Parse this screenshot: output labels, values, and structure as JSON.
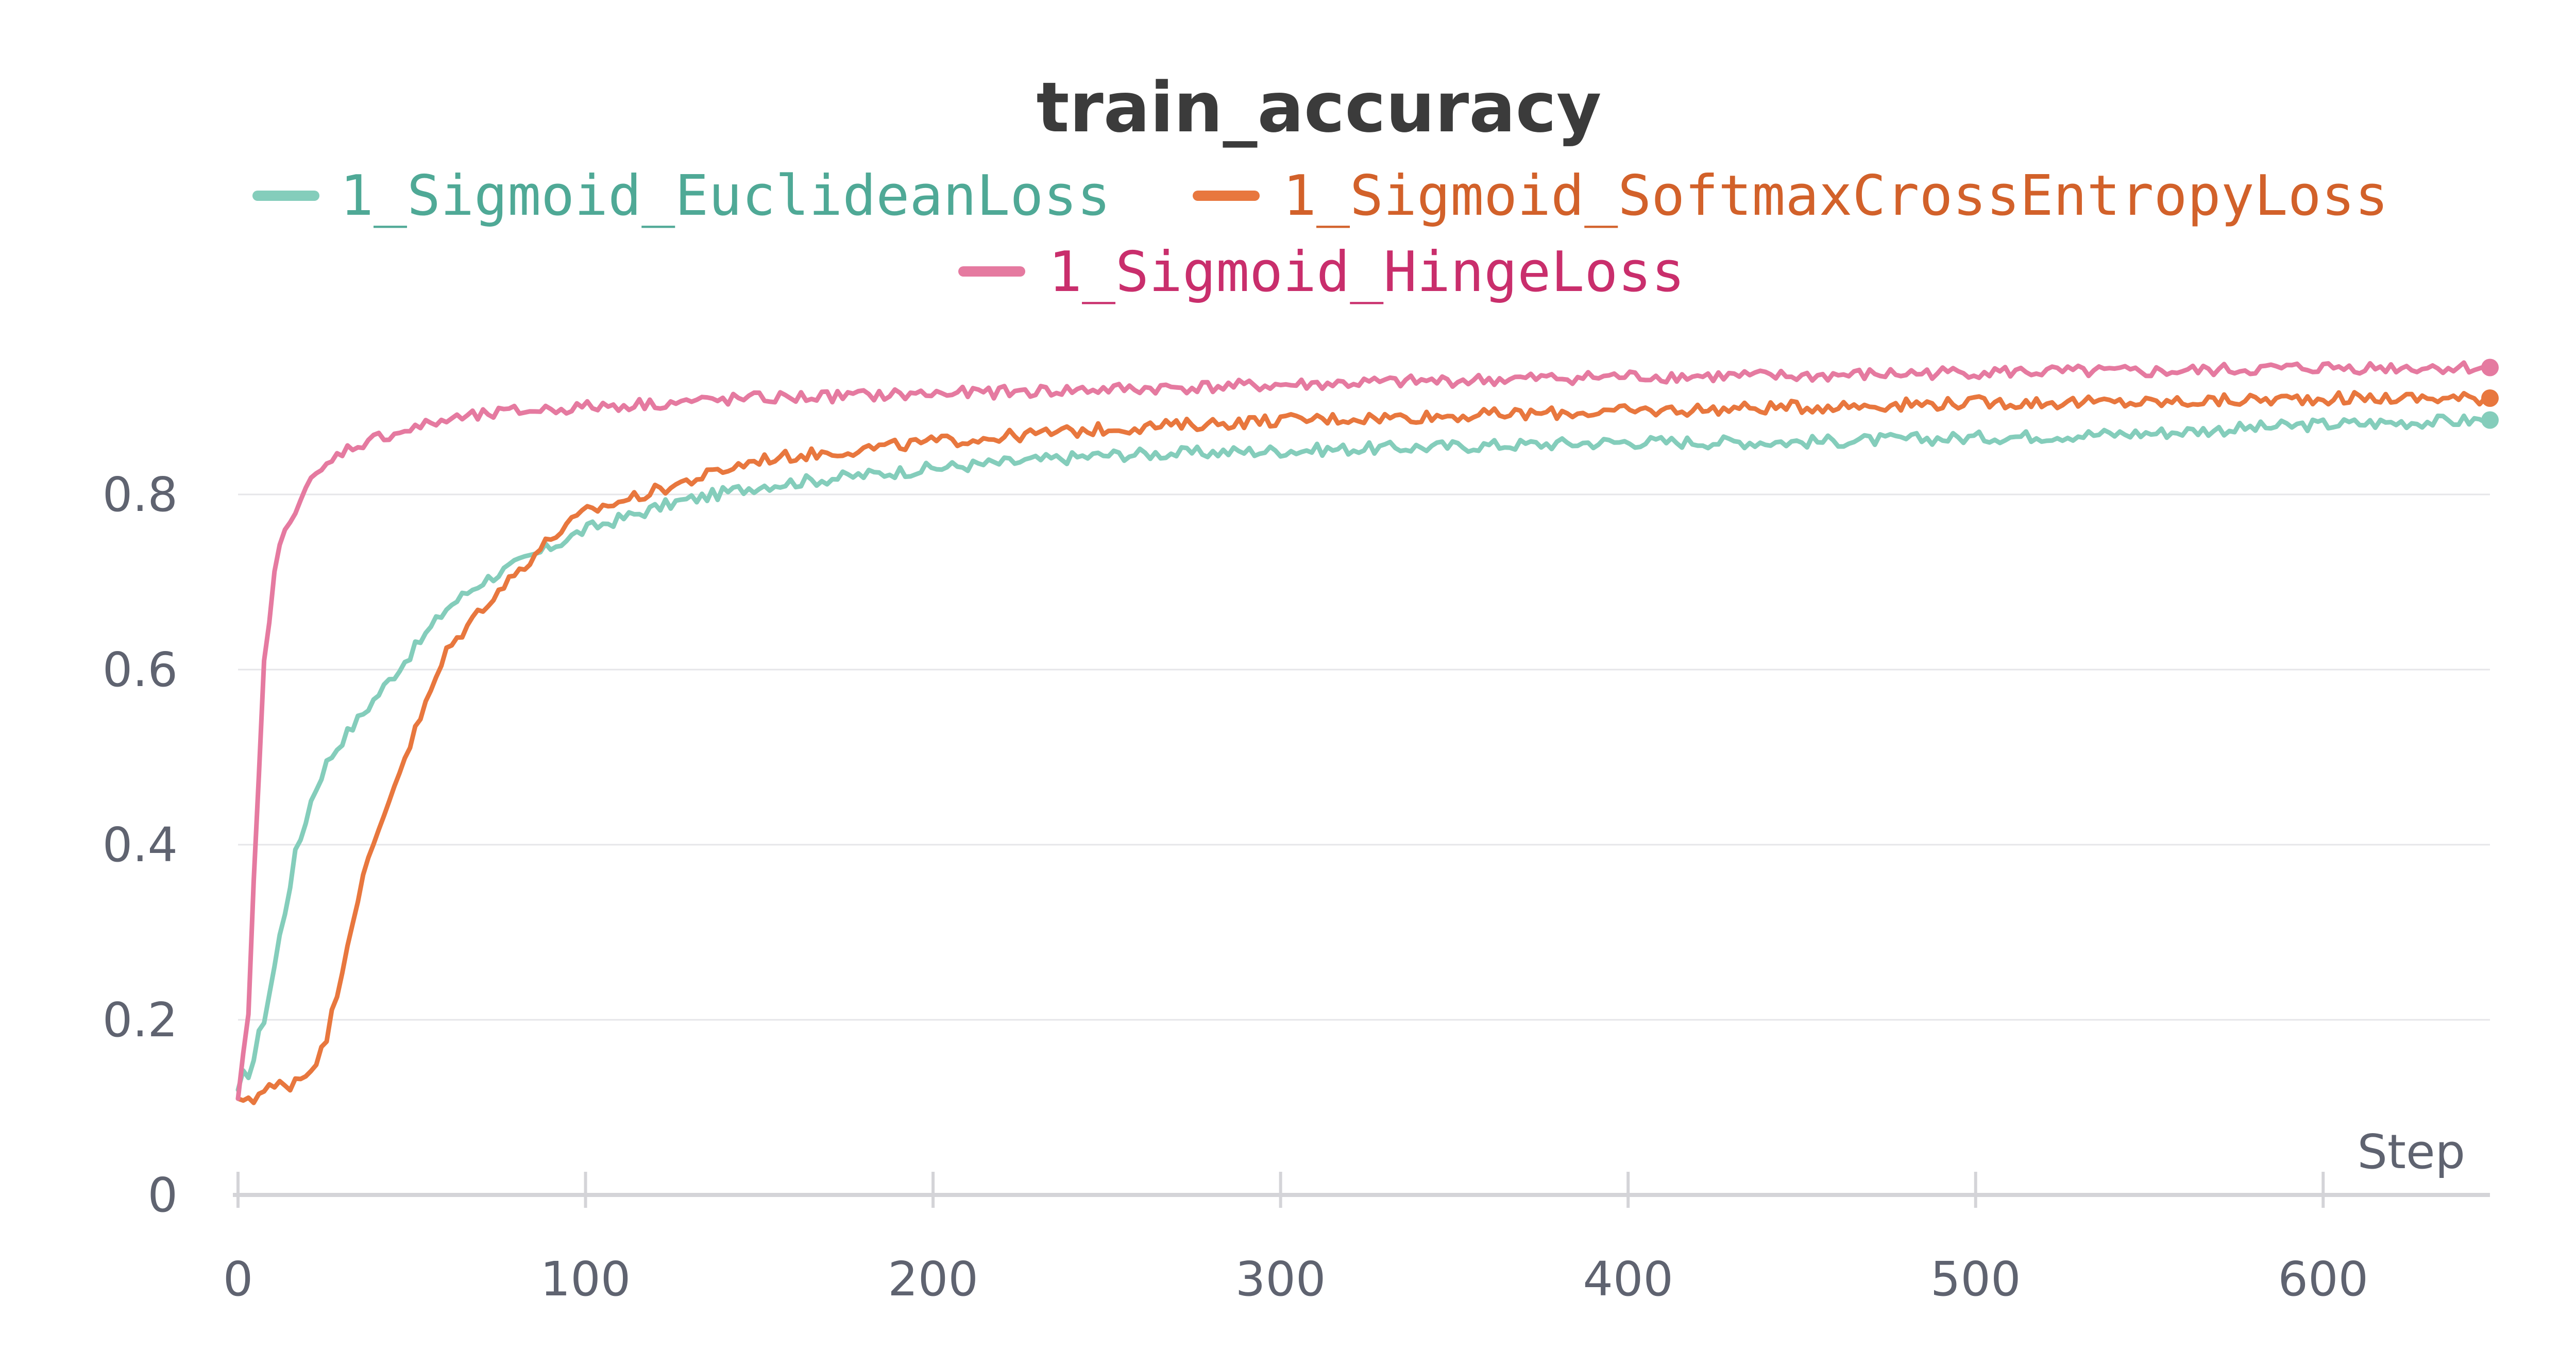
{
  "chart_data": {
    "type": "line",
    "title": "train_accuracy",
    "xlabel": "Step",
    "ylabel": "",
    "xlim": [
      0,
      648
    ],
    "ylim": [
      0,
      1.0
    ],
    "x_ticks": [
      0,
      100,
      200,
      300,
      400,
      500,
      600
    ],
    "y_ticks": [
      0,
      0.2,
      0.4,
      0.6,
      0.8
    ],
    "y_tick_labels": [
      "0",
      "0.2",
      "0.4",
      "0.6",
      "0.8"
    ],
    "grid": true,
    "legend_position": "top",
    "series": [
      {
        "name": "1_Sigmoid_EuclideanLoss",
        "color": "#84cdbb",
        "legend_text_color": "#4fa996",
        "x": [
          0,
          5,
          10,
          15,
          20,
          25,
          30,
          40,
          50,
          60,
          70,
          80,
          90,
          100,
          125,
          150,
          175,
          200,
          250,
          300,
          350,
          400,
          450,
          500,
          550,
          600,
          648
        ],
        "y": [
          0.12,
          0.16,
          0.25,
          0.36,
          0.44,
          0.49,
          0.52,
          0.57,
          0.62,
          0.67,
          0.7,
          0.72,
          0.74,
          0.76,
          0.79,
          0.81,
          0.82,
          0.83,
          0.845,
          0.85,
          0.855,
          0.86,
          0.86,
          0.865,
          0.87,
          0.88,
          0.885
        ]
      },
      {
        "name": "1_Sigmoid_SoftmaxCrossEntropyLoss",
        "color": "#e8773e",
        "legend_text_color": "#d2612a",
        "x": [
          0,
          10,
          15,
          20,
          25,
          30,
          35,
          40,
          45,
          50,
          55,
          60,
          70,
          80,
          90,
          100,
          125,
          150,
          175,
          200,
          250,
          300,
          350,
          400,
          450,
          500,
          550,
          600,
          648
        ],
        "y": [
          0.11,
          0.12,
          0.13,
          0.14,
          0.17,
          0.26,
          0.35,
          0.41,
          0.47,
          0.52,
          0.57,
          0.62,
          0.67,
          0.71,
          0.75,
          0.78,
          0.81,
          0.84,
          0.85,
          0.86,
          0.875,
          0.885,
          0.89,
          0.895,
          0.9,
          0.905,
          0.905,
          0.91,
          0.91
        ]
      },
      {
        "name": "1_Sigmoid_HingeLoss",
        "color": "#e57aa0",
        "legend_text_color": "#c92e6c",
        "x": [
          0,
          3,
          5,
          7,
          10,
          13,
          15,
          20,
          25,
          30,
          40,
          50,
          60,
          80,
          100,
          150,
          200,
          250,
          300,
          350,
          400,
          450,
          500,
          550,
          600,
          648
        ],
        "y": [
          0.11,
          0.2,
          0.4,
          0.58,
          0.7,
          0.75,
          0.78,
          0.81,
          0.83,
          0.85,
          0.865,
          0.875,
          0.885,
          0.895,
          0.9,
          0.91,
          0.915,
          0.92,
          0.925,
          0.93,
          0.935,
          0.935,
          0.94,
          0.94,
          0.945,
          0.945
        ]
      }
    ]
  }
}
